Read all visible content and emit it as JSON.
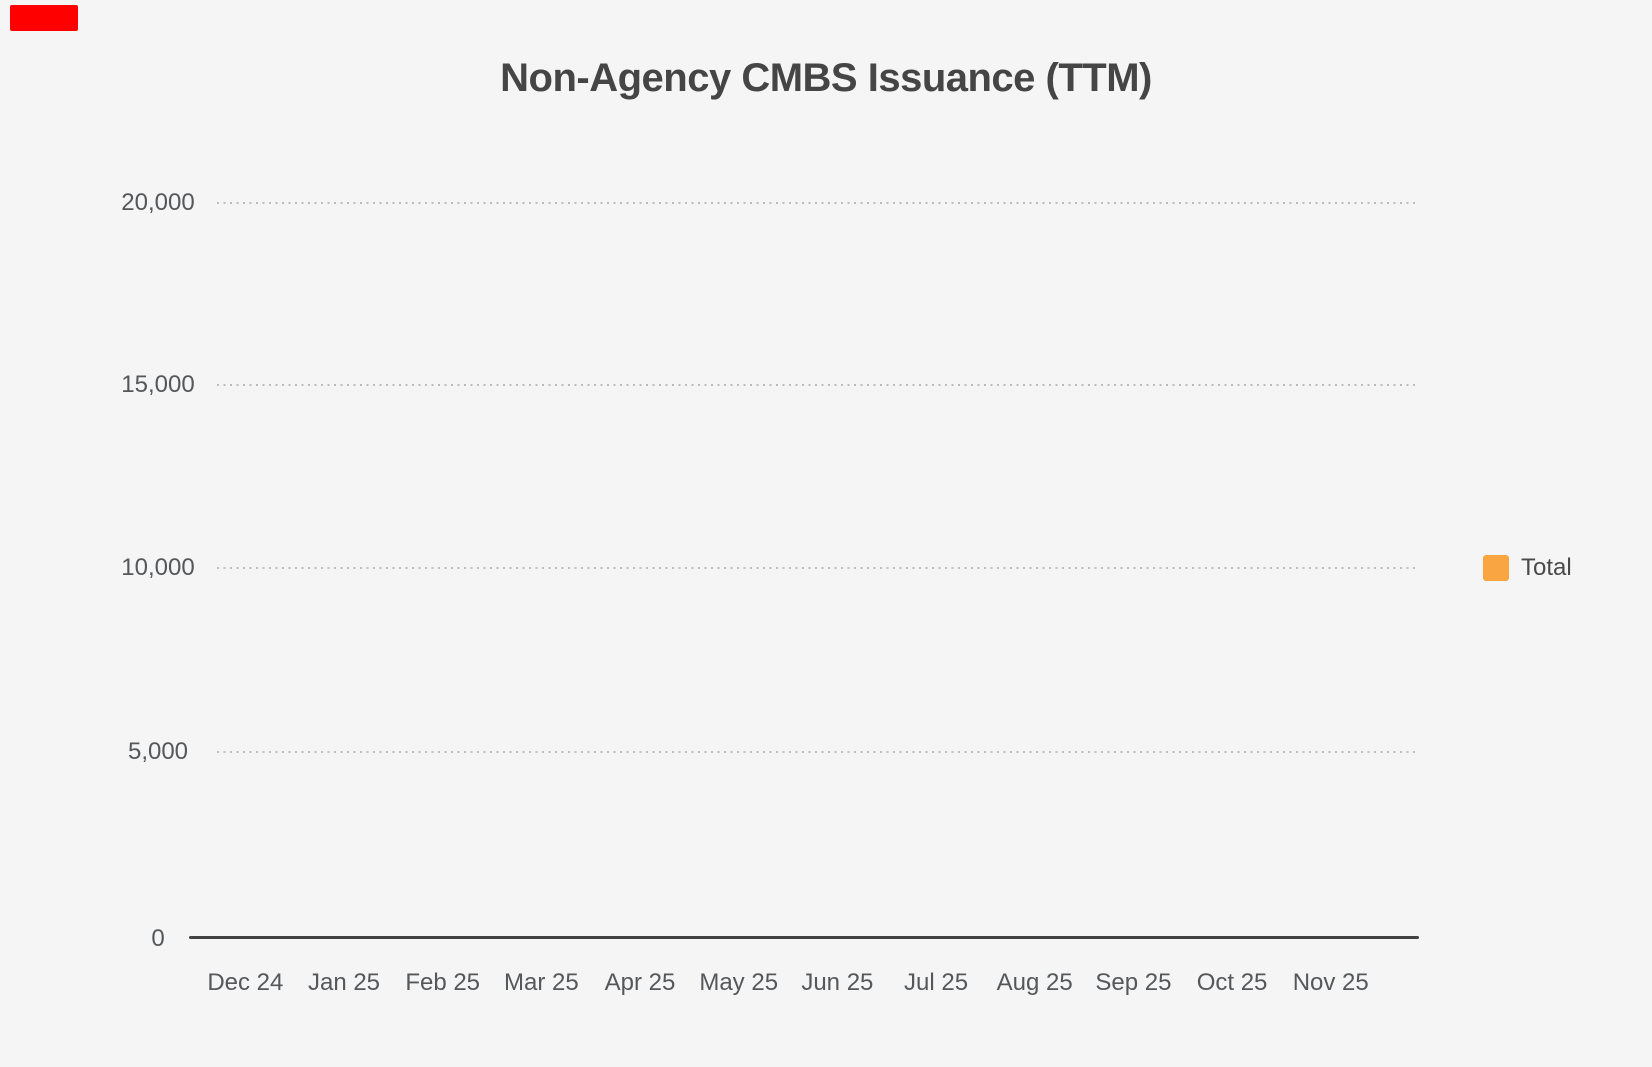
{
  "page": {
    "background_color": "#f5f5f6"
  },
  "marker": {
    "color": "#fe0000"
  },
  "chart_data": {
    "type": "bar",
    "title": "Non-Agency CMBS Issuance (TTM)",
    "categories": [
      "Dec 24",
      "Jan 25",
      "Feb 25",
      "Mar 25",
      "Apr 25",
      "May 25",
      "Jun 25",
      "Jul 25",
      "Aug 25",
      "Sep 25",
      "Oct 25",
      "Nov 25"
    ],
    "series": [
      {
        "name": "Total",
        "color": "#f9a642",
        "values": [
          0,
          0,
          0,
          0,
          0,
          0,
          0,
          0,
          0,
          0,
          0,
          0
        ]
      }
    ],
    "xlabel": "",
    "ylabel": "",
    "ylim": [
      0,
      20000
    ],
    "yticks": [
      20000,
      15000,
      10000,
      5000,
      0
    ],
    "ytick_labels": [
      "20,000",
      "15,000",
      "10,000",
      "5,000",
      "0"
    ],
    "grid": "horizontal-dotted",
    "legend_position": "right-middle"
  }
}
